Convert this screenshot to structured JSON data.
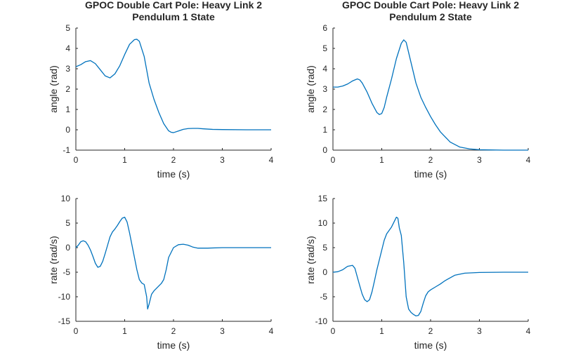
{
  "chart_data": [
    {
      "type": "line",
      "title": [
        "GPOC Double Cart Pole: Heavy Link 2",
        "Pendulum 1 State"
      ],
      "xlabel": "time (s)",
      "ylabel": "angle (rad)",
      "xlim": [
        0,
        4
      ],
      "ylim": [
        -1,
        5
      ],
      "xticks": [
        0,
        1,
        2,
        3,
        4
      ],
      "yticks": [
        -1,
        0,
        1,
        2,
        3,
        4,
        5
      ],
      "grid": false,
      "series": [
        {
          "name": "angle",
          "color": "#0072bd",
          "x": [
            0,
            0.1,
            0.2,
            0.3,
            0.4,
            0.5,
            0.6,
            0.7,
            0.8,
            0.9,
            1.0,
            1.1,
            1.2,
            1.25,
            1.3,
            1.4,
            1.5,
            1.6,
            1.7,
            1.8,
            1.9,
            1.95,
            2.0,
            2.1,
            2.2,
            2.3,
            2.4,
            2.5,
            2.6,
            2.8,
            3.0,
            3.5,
            4.0
          ],
          "y": [
            3.1,
            3.2,
            3.35,
            3.4,
            3.25,
            2.95,
            2.65,
            2.55,
            2.75,
            3.15,
            3.7,
            4.2,
            4.43,
            4.45,
            4.35,
            3.6,
            2.3,
            1.5,
            0.85,
            0.3,
            -0.05,
            -0.12,
            -0.14,
            -0.06,
            0.02,
            0.06,
            0.07,
            0.07,
            0.05,
            0.02,
            0.01,
            0.0,
            0.0
          ]
        }
      ]
    },
    {
      "type": "line",
      "title": [
        "GPOC Double Cart Pole: Heavy Link 2",
        "Pendulum 2 State"
      ],
      "xlabel": "time (s)",
      "ylabel": "angle (rad)",
      "xlim": [
        0,
        4
      ],
      "ylim": [
        0,
        6
      ],
      "xticks": [
        0,
        1,
        2,
        3,
        4
      ],
      "yticks": [
        0,
        1,
        2,
        3,
        4,
        5,
        6
      ],
      "grid": false,
      "series": [
        {
          "name": "angle",
          "color": "#0072bd",
          "x": [
            0,
            0.1,
            0.2,
            0.3,
            0.4,
            0.5,
            0.55,
            0.6,
            0.7,
            0.8,
            0.9,
            0.95,
            1.0,
            1.05,
            1.1,
            1.2,
            1.3,
            1.4,
            1.45,
            1.5,
            1.6,
            1.7,
            1.8,
            1.9,
            2.0,
            2.1,
            2.2,
            2.4,
            2.6,
            2.8,
            3.0,
            3.2,
            3.5,
            4.0
          ],
          "y": [
            3.1,
            3.1,
            3.15,
            3.25,
            3.4,
            3.5,
            3.45,
            3.3,
            2.85,
            2.3,
            1.85,
            1.75,
            1.8,
            2.1,
            2.6,
            3.5,
            4.5,
            5.25,
            5.42,
            5.3,
            4.3,
            3.3,
            2.6,
            2.1,
            1.65,
            1.25,
            0.9,
            0.4,
            0.15,
            0.06,
            0.02,
            0.01,
            0.0,
            0.0
          ]
        }
      ]
    },
    {
      "type": "line",
      "title": [],
      "xlabel": "time (s)",
      "ylabel": "rate (rad/s)",
      "xlim": [
        0,
        4
      ],
      "ylim": [
        -15,
        10
      ],
      "xticks": [
        0,
        1,
        2,
        3,
        4
      ],
      "yticks": [
        -15,
        -10,
        -5,
        0,
        5,
        10
      ],
      "grid": false,
      "series": [
        {
          "name": "rate",
          "color": "#0072bd",
          "x": [
            0,
            0.05,
            0.1,
            0.15,
            0.2,
            0.25,
            0.3,
            0.35,
            0.4,
            0.45,
            0.5,
            0.55,
            0.6,
            0.65,
            0.7,
            0.75,
            0.8,
            0.85,
            0.9,
            0.95,
            1.0,
            1.05,
            1.1,
            1.15,
            1.2,
            1.25,
            1.3,
            1.35,
            1.4,
            1.45,
            1.47,
            1.5,
            1.55,
            1.6,
            1.65,
            1.7,
            1.75,
            1.8,
            1.85,
            1.9,
            2.0,
            2.1,
            2.2,
            2.3,
            2.4,
            2.5,
            2.7,
            3.0,
            4.0
          ],
          "y": [
            0,
            0.5,
            1.2,
            1.4,
            1.2,
            0.5,
            -0.5,
            -1.8,
            -3.2,
            -4.0,
            -3.8,
            -2.8,
            -1.2,
            0.5,
            2.2,
            3.2,
            3.8,
            4.5,
            5.3,
            6.0,
            6.2,
            5.2,
            3.0,
            0.5,
            -2.0,
            -4.5,
            -6.5,
            -7.2,
            -7.5,
            -10.0,
            -12.5,
            -11.5,
            -9.5,
            -8.8,
            -8.3,
            -7.8,
            -7.3,
            -6.5,
            -4.5,
            -2.0,
            0.0,
            0.6,
            0.7,
            0.5,
            0.1,
            -0.1,
            -0.1,
            0.0,
            0.0
          ]
        }
      ]
    },
    {
      "type": "line",
      "title": [],
      "xlabel": "time (s)",
      "ylabel": "rate (rad/s)",
      "xlim": [
        0,
        4
      ],
      "ylim": [
        -10,
        15
      ],
      "xticks": [
        0,
        1,
        2,
        3,
        4
      ],
      "yticks": [
        -10,
        -5,
        0,
        5,
        10,
        15
      ],
      "grid": false,
      "series": [
        {
          "name": "rate",
          "color": "#0072bd",
          "x": [
            0,
            0.1,
            0.2,
            0.3,
            0.4,
            0.45,
            0.5,
            0.55,
            0.6,
            0.65,
            0.7,
            0.75,
            0.8,
            0.85,
            0.9,
            0.95,
            1.0,
            1.05,
            1.1,
            1.15,
            1.2,
            1.25,
            1.3,
            1.33,
            1.36,
            1.4,
            1.45,
            1.5,
            1.55,
            1.6,
            1.65,
            1.7,
            1.75,
            1.8,
            1.85,
            1.9,
            1.95,
            2.0,
            2.1,
            2.2,
            2.3,
            2.5,
            2.7,
            3.0,
            3.5,
            4.0
          ],
          "y": [
            0,
            0.1,
            0.5,
            1.2,
            1.4,
            0.8,
            -1.0,
            -2.8,
            -4.5,
            -5.6,
            -6.0,
            -5.6,
            -4.0,
            -1.8,
            0.5,
            2.5,
            4.5,
            6.5,
            7.8,
            8.5,
            9.2,
            10.2,
            11.2,
            11.0,
            9.0,
            7.5,
            2.0,
            -5.0,
            -7.5,
            -8.2,
            -8.6,
            -8.9,
            -8.8,
            -8.0,
            -6.3,
            -4.8,
            -4.0,
            -3.6,
            -3.0,
            -2.4,
            -1.7,
            -0.6,
            -0.2,
            -0.05,
            0.0,
            0.0
          ]
        }
      ]
    }
  ]
}
